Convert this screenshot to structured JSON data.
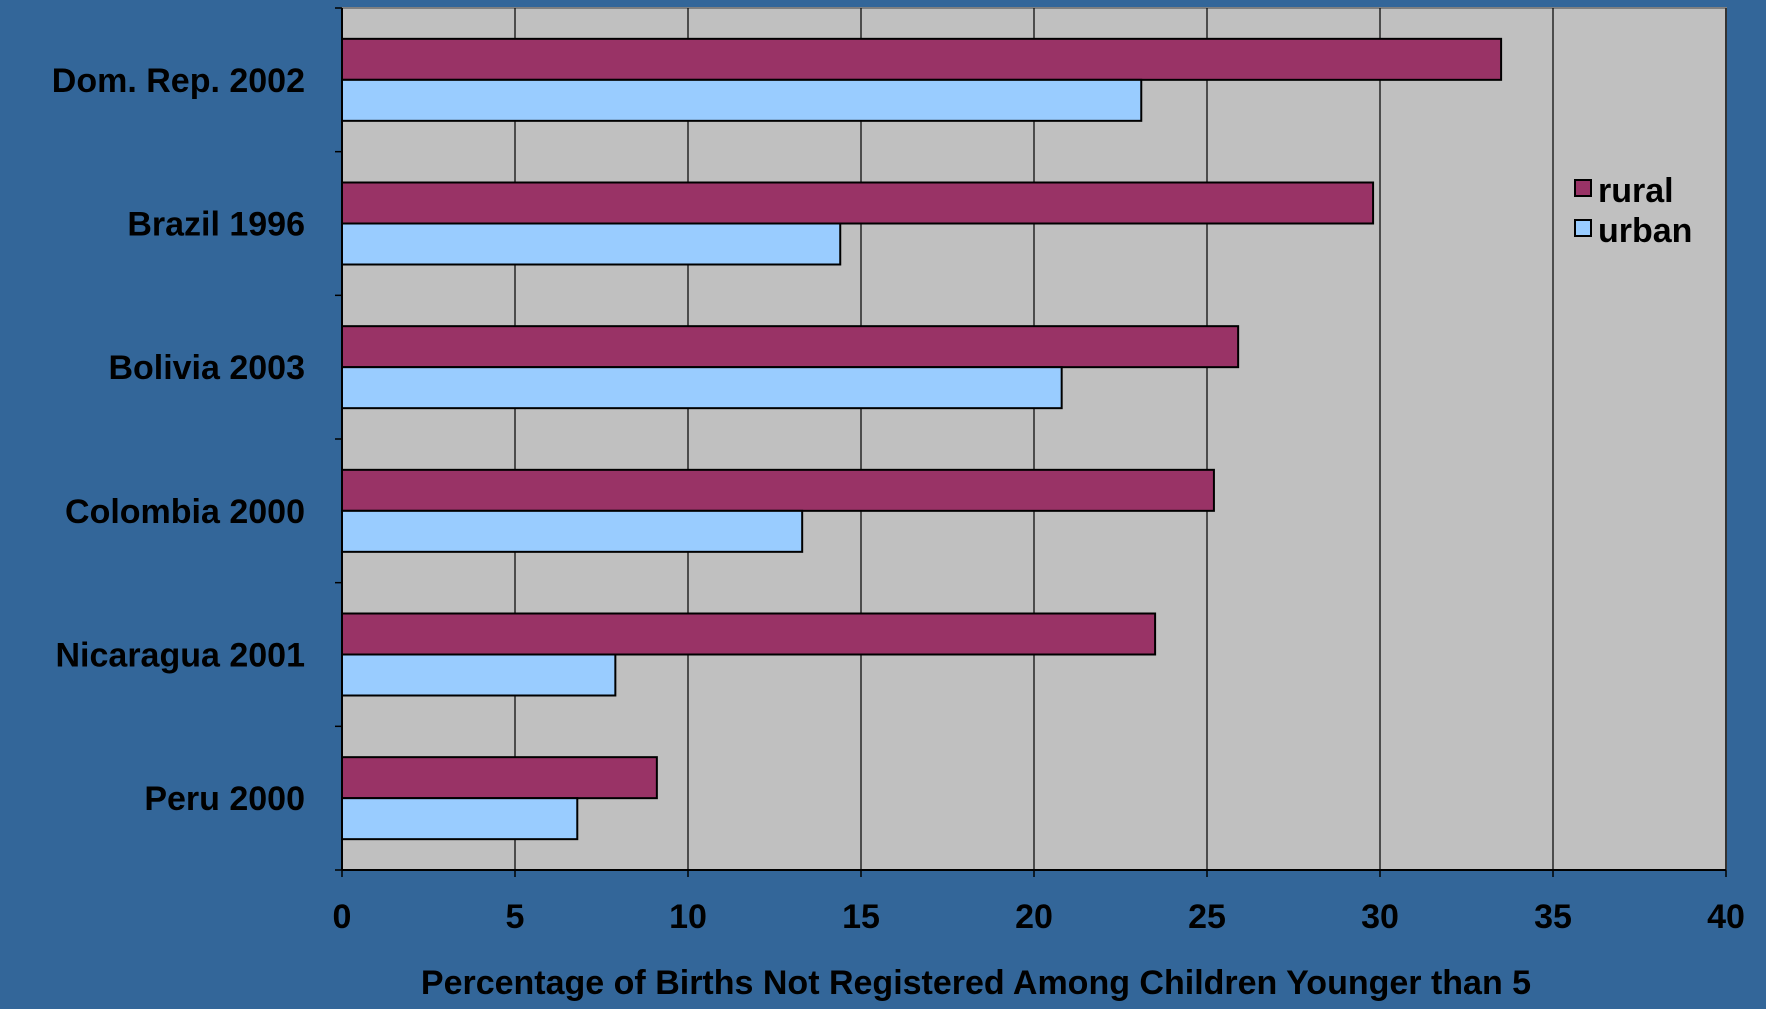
{
  "chart_data": {
    "type": "bar",
    "orientation": "horizontal",
    "categories": [
      "Dom. Rep. 2002",
      "Brazil 1996",
      "Bolivia 2003",
      "Colombia 2000",
      "Nicaragua 2001",
      "Peru 2000"
    ],
    "series": [
      {
        "name": "rural",
        "values": [
          33.5,
          29.8,
          25.9,
          25.2,
          23.5,
          9.1
        ]
      },
      {
        "name": "urban",
        "values": [
          23.1,
          14.4,
          20.8,
          13.3,
          7.9,
          6.8
        ]
      }
    ],
    "xlabel": "Percentage of Births Not Registered Among Children Younger than 5",
    "ylabel": "",
    "xlim": [
      0,
      40
    ],
    "xticks": [
      0,
      5,
      10,
      15,
      20,
      25,
      30,
      35,
      40
    ],
    "grid": "vertical",
    "legend_position": "right",
    "colors": {
      "page_background": "#336699",
      "plot_background": "#C0C0C0",
      "rural": "#993366",
      "urban": "#99CCFF",
      "axis": "#000000"
    }
  }
}
